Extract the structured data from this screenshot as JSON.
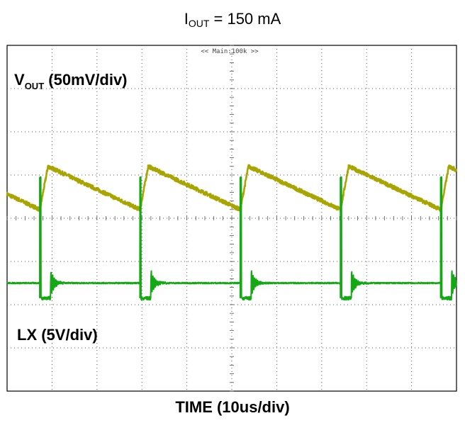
{
  "chart_data": {
    "type": "line",
    "title": "I_OUT = 150 mA",
    "title_main": "I",
    "title_sub": "OUT",
    "title_rest": " = 150 mA",
    "xlabel": "TIME (10us/div)",
    "grid": true,
    "grid_divisions": {
      "x": 10,
      "y": 8
    },
    "scope_banner": "<< Main:100k >>",
    "x_unit": "us",
    "x_range": [
      0,
      100
    ],
    "series": [
      {
        "name": "VOUT (50mV/div)",
        "label_main": "V",
        "label_sub": "OUT",
        "label_rest": " (50mV/div)",
        "color": "#a8a400",
        "shape": "sawtooth",
        "period_us": 22.3,
        "ramp_up_us": 1.8,
        "first_valley_us": 7.3,
        "peak_div": 5.2,
        "valley_div": 4.2,
        "x": [
          0,
          7.3,
          9.1,
          29.6,
          31.4,
          51.9,
          53.7,
          74.2,
          76.0,
          96.5,
          100
        ],
        "y_div": [
          4.8,
          4.2,
          5.2,
          4.2,
          5.2,
          4.2,
          5.2,
          4.2,
          5.2,
          4.2,
          5.0
        ]
      },
      {
        "name": "LX (5V/div)",
        "label_main": "LX (5V/div)",
        "color": "#14a814",
        "shape": "switching",
        "spike_times_us": [
          7.3,
          29.6,
          51.9,
          74.2,
          96.5
        ],
        "baseline_div": 2.5,
        "low_div": 2.15,
        "spike_peak_div": 4.95,
        "low_duration_us": 2.4
      }
    ]
  }
}
